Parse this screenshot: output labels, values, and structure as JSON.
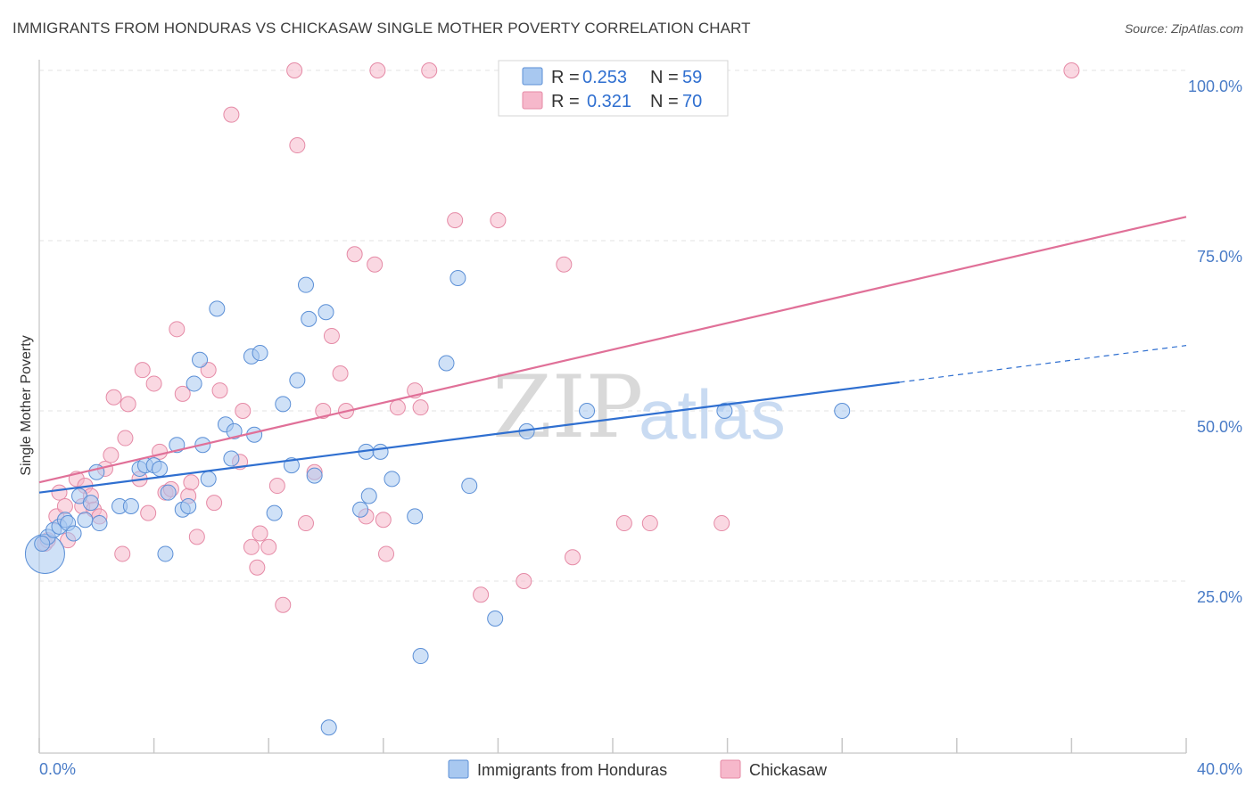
{
  "header": {
    "title": "IMMIGRANTS FROM HONDURAS VS CHICKASAW SINGLE MOTHER POVERTY CORRELATION CHART",
    "source": "Source: ZipAtlas.com"
  },
  "watermark": {
    "zip": "ZIP",
    "atlas": "atlas"
  },
  "legend_top": {
    "rows": [
      {
        "r_label": "R =",
        "r_value": "0.253",
        "n_label": "N =",
        "n_value": "59",
        "color": "#a8c8f0"
      },
      {
        "r_label": "R =",
        "r_value": "0.321",
        "n_label": "N =",
        "n_value": "70",
        "color": "#f6b8cb"
      }
    ]
  },
  "legend_bottom": {
    "items": [
      {
        "label": "Immigrants from Honduras",
        "color": "#a8c8f0"
      },
      {
        "label": "Chickasaw",
        "color": "#f6b8cb"
      }
    ]
  },
  "chart_data": {
    "type": "scatter",
    "title": "IMMIGRANTS FROM HONDURAS VS CHICKASAW SINGLE MOTHER POVERTY CORRELATION CHART",
    "xlabel": "",
    "ylabel": "Single Mother Poverty",
    "xlim": [
      0,
      40
    ],
    "ylim": [
      0,
      105
    ],
    "x_tick_labels": [
      "0.0%",
      "40.0%"
    ],
    "y_ticks": [
      25,
      50,
      75,
      100
    ],
    "y_tick_labels": [
      "25.0%",
      "50.0%",
      "75.0%",
      "100.0%"
    ],
    "grid": true,
    "legend_position": "top-center",
    "series": [
      {
        "name": "Immigrants from Honduras",
        "color": "#a8c8f0",
        "edge": "#5b8fd6",
        "line_color": "#2f6fd0",
        "trend": {
          "x0": 0,
          "y0": 38.0,
          "x1": 30.0,
          "y1": 54.2,
          "dash_to_x": 40,
          "dash_to_y": 59.6
        },
        "points": [
          [
            0.2,
            29.0
          ],
          [
            0.3,
            31.5
          ],
          [
            0.5,
            32.5
          ],
          [
            0.7,
            33.0
          ],
          [
            0.9,
            34.0
          ],
          [
            1.0,
            33.5
          ],
          [
            1.2,
            32.0
          ],
          [
            1.4,
            37.5
          ],
          [
            1.6,
            34.0
          ],
          [
            1.8,
            36.5
          ],
          [
            2.0,
            41.0
          ],
          [
            2.1,
            33.5
          ],
          [
            2.8,
            36.0
          ],
          [
            3.2,
            36.0
          ],
          [
            3.5,
            41.5
          ],
          [
            3.7,
            42.0
          ],
          [
            4.0,
            42.0
          ],
          [
            4.2,
            41.5
          ],
          [
            4.4,
            29.0
          ],
          [
            4.5,
            38.0
          ],
          [
            4.8,
            45.0
          ],
          [
            5.0,
            35.5
          ],
          [
            5.2,
            36.0
          ],
          [
            5.4,
            54.0
          ],
          [
            5.6,
            57.5
          ],
          [
            5.9,
            40.0
          ],
          [
            5.7,
            45.0
          ],
          [
            6.2,
            65.0
          ],
          [
            6.5,
            48.0
          ],
          [
            6.7,
            43.0
          ],
          [
            6.8,
            47.0
          ],
          [
            7.4,
            58.0
          ],
          [
            7.5,
            46.5
          ],
          [
            7.7,
            58.5
          ],
          [
            8.2,
            35.0
          ],
          [
            8.5,
            51.0
          ],
          [
            8.8,
            42.0
          ],
          [
            9.0,
            54.5
          ],
          [
            9.3,
            68.5
          ],
          [
            9.4,
            63.5
          ],
          [
            9.6,
            40.5
          ],
          [
            10.0,
            64.5
          ],
          [
            10.1,
            3.5
          ],
          [
            11.2,
            35.5
          ],
          [
            11.4,
            44.0
          ],
          [
            11.5,
            37.5
          ],
          [
            11.9,
            44.0
          ],
          [
            12.3,
            40.0
          ],
          [
            13.1,
            34.5
          ],
          [
            13.3,
            14.0
          ],
          [
            14.2,
            57.0
          ],
          [
            14.6,
            69.5
          ],
          [
            15.0,
            39.0
          ],
          [
            15.9,
            19.5
          ],
          [
            17.0,
            47.0
          ],
          [
            19.1,
            50.0
          ],
          [
            23.9,
            50.0
          ],
          [
            28.0,
            50.0
          ],
          [
            0.1,
            30.5
          ]
        ],
        "sizes": {
          "0": 22
        }
      },
      {
        "name": "Chickasaw",
        "color": "#f6b8cb",
        "edge": "#e58aa6",
        "line_color": "#e07098",
        "trend": {
          "x0": 0,
          "y0": 39.5,
          "x1": 40,
          "y1": 78.5
        },
        "points": [
          [
            0.2,
            30.5
          ],
          [
            0.3,
            31.0
          ],
          [
            0.6,
            34.5
          ],
          [
            0.7,
            38.0
          ],
          [
            0.9,
            36.0
          ],
          [
            1.0,
            31.0
          ],
          [
            1.3,
            40.0
          ],
          [
            1.5,
            36.0
          ],
          [
            1.6,
            39.0
          ],
          [
            1.8,
            37.5
          ],
          [
            1.9,
            35.5
          ],
          [
            2.1,
            34.5
          ],
          [
            2.3,
            41.5
          ],
          [
            2.5,
            43.5
          ],
          [
            2.6,
            52.0
          ],
          [
            2.9,
            29.0
          ],
          [
            3.0,
            46.0
          ],
          [
            3.1,
            51.0
          ],
          [
            3.5,
            40.0
          ],
          [
            3.6,
            56.0
          ],
          [
            3.8,
            35.0
          ],
          [
            4.0,
            54.0
          ],
          [
            4.2,
            44.0
          ],
          [
            4.4,
            38.0
          ],
          [
            4.6,
            38.5
          ],
          [
            4.8,
            62.0
          ],
          [
            5.0,
            52.5
          ],
          [
            5.2,
            37.5
          ],
          [
            5.3,
            39.5
          ],
          [
            5.5,
            31.5
          ],
          [
            5.9,
            56.0
          ],
          [
            6.1,
            36.5
          ],
          [
            6.3,
            53.0
          ],
          [
            6.7,
            93.5
          ],
          [
            7.0,
            42.5
          ],
          [
            7.1,
            50.0
          ],
          [
            7.4,
            30.0
          ],
          [
            7.6,
            27.0
          ],
          [
            7.7,
            32.0
          ],
          [
            8.0,
            30.0
          ],
          [
            8.3,
            39.0
          ],
          [
            8.5,
            21.5
          ],
          [
            8.9,
            100.0
          ],
          [
            9.0,
            89.0
          ],
          [
            9.3,
            33.5
          ],
          [
            9.6,
            41.0
          ],
          [
            9.9,
            50.0
          ],
          [
            10.2,
            61.0
          ],
          [
            10.5,
            55.5
          ],
          [
            10.7,
            50.0
          ],
          [
            11.0,
            73.0
          ],
          [
            11.4,
            34.5
          ],
          [
            11.7,
            71.5
          ],
          [
            11.8,
            100.0
          ],
          [
            12.0,
            34.0
          ],
          [
            12.1,
            29.0
          ],
          [
            12.5,
            50.5
          ],
          [
            13.1,
            53.0
          ],
          [
            13.3,
            50.5
          ],
          [
            13.6,
            100.0
          ],
          [
            14.5,
            78.0
          ],
          [
            15.4,
            23.0
          ],
          [
            16.0,
            78.0
          ],
          [
            16.9,
            25.0
          ],
          [
            18.3,
            71.5
          ],
          [
            18.6,
            28.5
          ],
          [
            20.4,
            33.5
          ],
          [
            21.3,
            33.5
          ],
          [
            23.8,
            33.5
          ],
          [
            36.0,
            100.0
          ]
        ]
      }
    ]
  }
}
